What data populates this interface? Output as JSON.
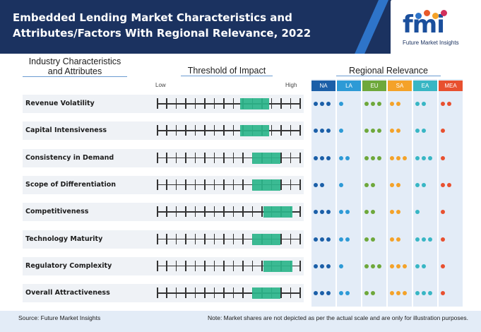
{
  "header": {
    "title": "Embedded Lending Market Characteristics and Attributes/Factors With Regional Relevance, 2022",
    "logo_text": "fmi",
    "logo_subtitle": "Future Market Insights",
    "logo_dot_colors": [
      "#2e74c9",
      "#e85a2a",
      "#f4a229",
      "#d22f5c"
    ],
    "band_color": "#1b3260"
  },
  "columns": {
    "characteristics_heading_line1": "Industry Characteristics",
    "characteristics_heading_line2": "and Attributes",
    "threshold_heading": "Threshold of Impact",
    "regional_heading": "Regional Relevance",
    "low_label": "Low",
    "high_label": "High"
  },
  "regions": [
    {
      "code": "NA",
      "color": "#1b5fa8",
      "dot_color": "#1b5fa8"
    },
    {
      "code": "LA",
      "color": "#2d9ad6",
      "dot_color": "#2d9ad6"
    },
    {
      "code": "EU",
      "color": "#6ea83b",
      "dot_color": "#6ea83b"
    },
    {
      "code": "SA",
      "color": "#f4a229",
      "dot_color": "#f4a229"
    },
    {
      "code": "EA",
      "color": "#38b6c4",
      "dot_color": "#38b6c4"
    },
    {
      "code": "MEA",
      "color": "#e8502f",
      "dot_color": "#e8502f"
    }
  ],
  "scale_ticks": 16,
  "rows": [
    {
      "label": "Revenue Volatility",
      "impact_start": 0.58,
      "impact_end": 0.78,
      "relevance": [
        3,
        1,
        3,
        2,
        2,
        2
      ]
    },
    {
      "label": "Capital Intensiveness",
      "impact_start": 0.58,
      "impact_end": 0.78,
      "relevance": [
        3,
        1,
        3,
        2,
        2,
        1
      ]
    },
    {
      "label": "Consistency in Demand",
      "impact_start": 0.66,
      "impact_end": 0.86,
      "relevance": [
        3,
        2,
        3,
        3,
        3,
        1
      ]
    },
    {
      "label": "Scope of Differentiation",
      "impact_start": 0.66,
      "impact_end": 0.86,
      "relevance": [
        2,
        1,
        2,
        2,
        2,
        2
      ]
    },
    {
      "label": "Competitiveness",
      "impact_start": 0.74,
      "impact_end": 0.94,
      "relevance": [
        3,
        2,
        2,
        2,
        1,
        1
      ]
    },
    {
      "label": "Technology Maturity",
      "impact_start": 0.66,
      "impact_end": 0.86,
      "relevance": [
        3,
        2,
        2,
        2,
        3,
        1
      ]
    },
    {
      "label": "Regulatory Complexity",
      "impact_start": 0.74,
      "impact_end": 0.94,
      "relevance": [
        3,
        1,
        3,
        3,
        2,
        1
      ]
    },
    {
      "label": "Overall Attractiveness",
      "impact_start": 0.66,
      "impact_end": 0.86,
      "relevance": [
        3,
        2,
        2,
        3,
        3,
        1
      ]
    }
  ],
  "footer": {
    "source": "Source: Future Market Insights",
    "note": "Note: Market shares are not depicted as per the actual scale and are only for illustration purposes."
  }
}
